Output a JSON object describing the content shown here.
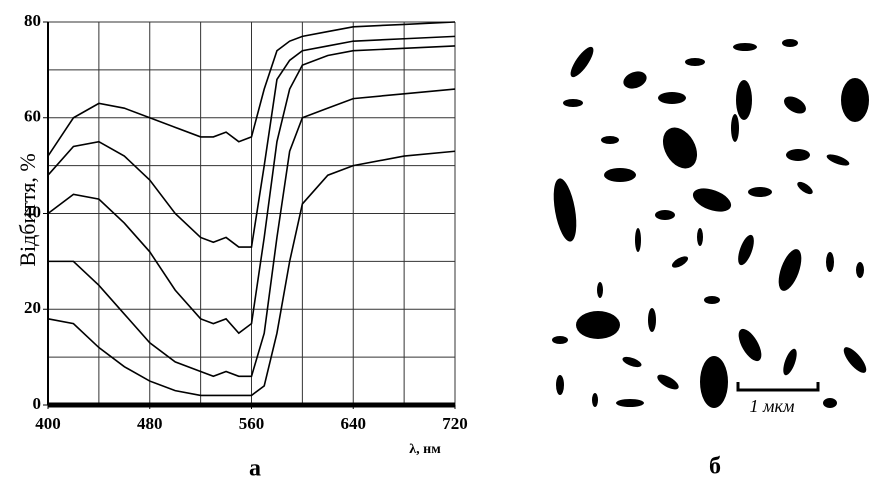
{
  "chart_data": {
    "type": "line",
    "y_label": "Відбиття, %",
    "x_label": "λ, нм",
    "panel_label": "а",
    "x": [
      400,
      420,
      440,
      460,
      480,
      500,
      520,
      530,
      540,
      550,
      560,
      570,
      580,
      590,
      600,
      620,
      640,
      680,
      720
    ],
    "series": [
      {
        "color": "#000000",
        "values": [
          52,
          60,
          63,
          62,
          60,
          58,
          56,
          56,
          57,
          55,
          56,
          66,
          74,
          76,
          77,
          78,
          79,
          79.5,
          80
        ]
      },
      {
        "color": "#000000",
        "values": [
          48,
          54,
          55,
          52,
          47,
          40,
          35,
          34,
          35,
          33,
          33,
          50,
          68,
          72,
          74,
          75,
          76,
          76.5,
          77
        ]
      },
      {
        "color": "#000000",
        "values": [
          40,
          44,
          43,
          38,
          32,
          24,
          18,
          17,
          18,
          15,
          17,
          35,
          55,
          66,
          71,
          73,
          74,
          74.5,
          75
        ]
      },
      {
        "color": "#000000",
        "values": [
          30,
          30,
          25,
          19,
          13,
          9,
          7,
          6,
          7,
          6,
          6,
          15,
          35,
          53,
          60,
          62,
          64,
          65,
          66
        ]
      },
      {
        "color": "#000000",
        "values": [
          18,
          17,
          12,
          8,
          5,
          3,
          2,
          2,
          2,
          2,
          2,
          4,
          15,
          30,
          42,
          48,
          50,
          52,
          53
        ]
      }
    ],
    "xlim": [
      400,
      720
    ],
    "xticks": [
      400,
      480,
      560,
      640,
      720
    ],
    "ylim": [
      0,
      80
    ],
    "yticks": [
      0,
      20,
      40,
      60,
      80
    ],
    "x_grid": [
      400,
      440,
      480,
      520,
      560,
      600,
      640,
      680,
      720
    ],
    "y_grid": [
      0,
      10,
      20,
      30,
      40,
      50,
      60,
      70,
      80
    ],
    "grid": true
  },
  "micrograph": {
    "scale_bar": "1 мкм",
    "panel_label": "б"
  }
}
